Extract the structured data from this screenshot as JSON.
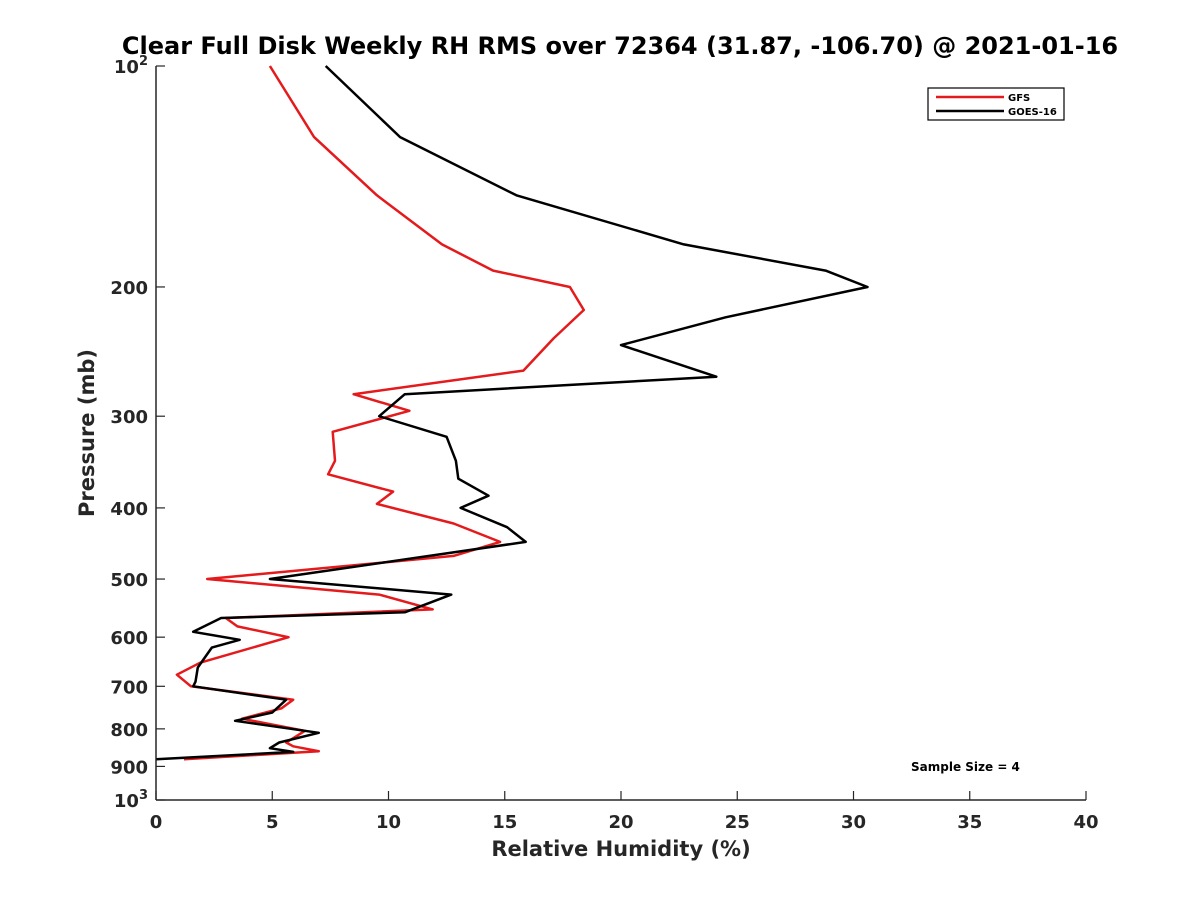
{
  "chart_data": {
    "type": "line",
    "title": "Clear Full Disk Weekly RH RMS over 72364 (31.87, -106.70) @ 2021-01-16",
    "xlabel": "Relative Humidity (%)",
    "ylabel": "Pressure (mb)",
    "xlim": [
      0,
      40
    ],
    "ylim": [
      100,
      1000
    ],
    "yscale": "log",
    "yreversed": true,
    "xticks": [
      0,
      5,
      10,
      15,
      20,
      25,
      30,
      35,
      40
    ],
    "yticks": [
      {
        "value": 100,
        "base": "10",
        "exp": "2"
      },
      {
        "value": 200,
        "label": "200"
      },
      {
        "value": 300,
        "label": "300"
      },
      {
        "value": 400,
        "label": "400"
      },
      {
        "value": 500,
        "label": "500"
      },
      {
        "value": 600,
        "label": "600"
      },
      {
        "value": 700,
        "label": "700"
      },
      {
        "value": 800,
        "label": "800"
      },
      {
        "value": 900,
        "label": "900"
      },
      {
        "value": 1000,
        "base": "10",
        "exp": "3"
      }
    ],
    "grid": false,
    "legend_position": "top-right",
    "annotation": "Sample Size = 4",
    "series": [
      {
        "name": "GFS",
        "color": "#e41a1c",
        "points": [
          [
            4.9,
            100
          ],
          [
            6.8,
            125
          ],
          [
            9.5,
            150
          ],
          [
            12.3,
            175
          ],
          [
            14.5,
            190
          ],
          [
            17.8,
            200
          ],
          [
            18.4,
            215
          ],
          [
            17.1,
            235
          ],
          [
            15.8,
            260
          ],
          [
            8.5,
            280
          ],
          [
            10.9,
            295
          ],
          [
            7.6,
            315
          ],
          [
            7.7,
            345
          ],
          [
            7.4,
            360
          ],
          [
            10.2,
            380
          ],
          [
            9.5,
            395
          ],
          [
            12.8,
            420
          ],
          [
            14.8,
            445
          ],
          [
            12.8,
            465
          ],
          [
            2.2,
            500
          ],
          [
            9.6,
            525
          ],
          [
            11.9,
            550
          ],
          [
            3.0,
            565
          ],
          [
            3.5,
            580
          ],
          [
            5.7,
            600
          ],
          [
            1.9,
            650
          ],
          [
            0.9,
            675
          ],
          [
            1.5,
            700
          ],
          [
            5.9,
            730
          ],
          [
            5.4,
            750
          ],
          [
            3.7,
            775
          ],
          [
            6.4,
            805
          ],
          [
            5.6,
            835
          ],
          [
            5.9,
            845
          ],
          [
            7.0,
            858
          ],
          [
            1.2,
            880
          ]
        ]
      },
      {
        "name": "GOES-16",
        "color": "#000000",
        "points": [
          [
            7.3,
            100
          ],
          [
            10.5,
            125
          ],
          [
            15.5,
            150
          ],
          [
            22.7,
            175
          ],
          [
            28.8,
            190
          ],
          [
            30.6,
            200
          ],
          [
            24.5,
            220
          ],
          [
            20.0,
            240
          ],
          [
            24.1,
            265
          ],
          [
            10.7,
            280
          ],
          [
            9.6,
            300
          ],
          [
            12.5,
            320
          ],
          [
            12.9,
            345
          ],
          [
            13.0,
            365
          ],
          [
            14.3,
            385
          ],
          [
            13.1,
            400
          ],
          [
            15.1,
            425
          ],
          [
            15.9,
            445
          ],
          [
            4.9,
            500
          ],
          [
            12.7,
            525
          ],
          [
            10.7,
            555
          ],
          [
            2.8,
            565
          ],
          [
            1.6,
            590
          ],
          [
            3.6,
            605
          ],
          [
            2.4,
            620
          ],
          [
            1.8,
            660
          ],
          [
            1.7,
            690
          ],
          [
            1.6,
            700
          ],
          [
            5.6,
            730
          ],
          [
            5.0,
            760
          ],
          [
            3.4,
            780
          ],
          [
            7.0,
            810
          ],
          [
            5.3,
            835
          ],
          [
            4.9,
            850
          ],
          [
            5.9,
            860
          ],
          [
            0,
            880
          ]
        ]
      }
    ]
  }
}
